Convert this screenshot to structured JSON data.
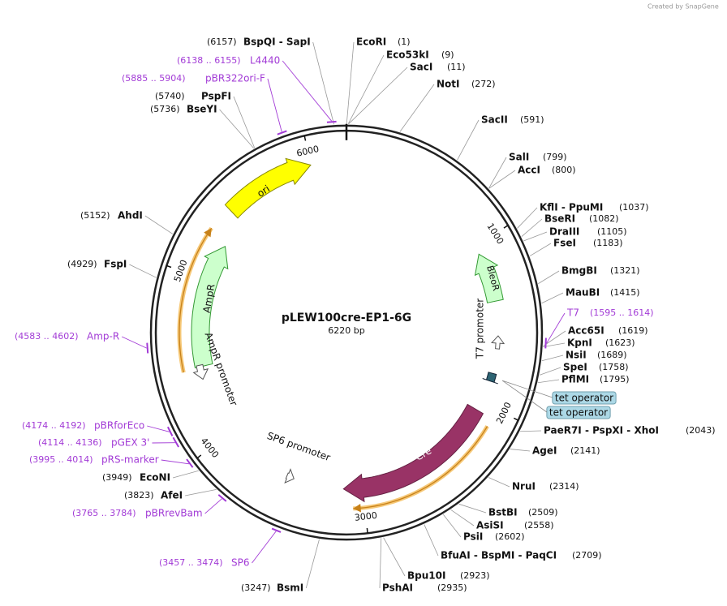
{
  "watermark": "Created by SnapGene",
  "title": "pLEW100cre-EP1-6G",
  "length": "6220 bp",
  "ring_ticks": [
    1000,
    2000,
    3000,
    4000,
    5000,
    6000
  ],
  "enzymes": [
    {
      "name": "EcoRI",
      "position": "(1)"
    },
    {
      "name": "Eco53kI",
      "position": "(9)"
    },
    {
      "name": "SacI",
      "position": "(11)"
    },
    {
      "name": "NotI",
      "position": "(272)"
    },
    {
      "name": "SacII",
      "position": "(591)"
    },
    {
      "name": "SalI",
      "position": "(799)"
    },
    {
      "name": "AccI",
      "position": "(800)"
    },
    {
      "name": "KflI - PpuMI",
      "position": "(1037)"
    },
    {
      "name": "BseRI",
      "position": "(1082)"
    },
    {
      "name": "DraIII",
      "position": "(1105)"
    },
    {
      "name": "FseI",
      "position": "(1183)"
    },
    {
      "name": "BmgBI",
      "position": "(1321)"
    },
    {
      "name": "MauBI",
      "position": "(1415)"
    },
    {
      "name": "Acc65I",
      "position": "(1619)"
    },
    {
      "name": "KpnI",
      "position": "(1623)"
    },
    {
      "name": "NsiI",
      "position": "(1689)"
    },
    {
      "name": "SpeI",
      "position": "(1758)"
    },
    {
      "name": "PflMI",
      "position": "(1795)"
    },
    {
      "name": "PaeR7I - PspXI - XhoI",
      "position": "(2043)"
    },
    {
      "name": "AgeI",
      "position": "(2141)"
    },
    {
      "name": "NruI",
      "position": "(2314)"
    },
    {
      "name": "BstBI",
      "position": "(2509)"
    },
    {
      "name": "AsiSI",
      "position": "(2558)"
    },
    {
      "name": "PsiI",
      "position": "(2602)"
    },
    {
      "name": "BfuAI - BspMI - PaqCI",
      "position": "(2709)"
    },
    {
      "name": "Bpu10I",
      "position": "(2923)"
    },
    {
      "name": "PshAI",
      "position": "(2935)"
    },
    {
      "name": "BsmI",
      "position": "(3247)"
    },
    {
      "name": "AfeI",
      "position": "(3823)"
    },
    {
      "name": "EcoNI",
      "position": "(3949)"
    },
    {
      "name": "FspI",
      "position": "(4929)"
    },
    {
      "name": "AhdI",
      "position": "(5152)"
    },
    {
      "name": "BseYI",
      "position": "(5736)"
    },
    {
      "name": "PspFI",
      "position": "(5740)"
    },
    {
      "name": "BspQI - SapI",
      "position": "(6157)"
    }
  ],
  "primers": [
    {
      "name": "T7",
      "range": "(1595 .. 1614)"
    },
    {
      "name": "SP6",
      "range": "(3457 .. 3474)"
    },
    {
      "name": "pBRrevBam",
      "range": "(3765 .. 3784)"
    },
    {
      "name": "pRS-marker",
      "range": "(3995 .. 4014)"
    },
    {
      "name": "pGEX 3'",
      "range": "(4114 .. 4136)"
    },
    {
      "name": "pBRforEco",
      "range": "(4174 .. 4192)"
    },
    {
      "name": "Amp-R",
      "range": "(4583 .. 4602)"
    },
    {
      "name": "pBR322ori-F",
      "range": "(5885 .. 5904)"
    },
    {
      "name": "L4440",
      "range": "(6138 .. 6155)"
    }
  ],
  "features": [
    {
      "label": "ori"
    },
    {
      "label": "AmpR"
    },
    {
      "label": "AmpR promoter"
    },
    {
      "label": "BleoR"
    },
    {
      "label": "T7 promoter"
    },
    {
      "label": "tet operator"
    },
    {
      "label": "tet operator"
    },
    {
      "label": "Cre"
    },
    {
      "label": "SP6 promoter"
    }
  ]
}
